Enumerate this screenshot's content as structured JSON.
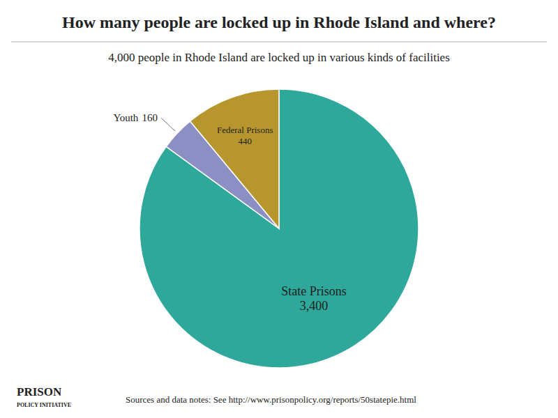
{
  "chart_data": {
    "type": "pie",
    "title": "How many people are locked up in Rhode Island and where?",
    "subtitle": "4,000 people in Rhode Island are locked up in various kinds of facilities",
    "categories": [
      "State Prisons",
      "Youth",
      "Federal Prisons"
    ],
    "values": [
      3400,
      160,
      440
    ],
    "value_labels": [
      "3,400",
      "160",
      "440"
    ],
    "colors": [
      "#2da89a",
      "#8b8fc4",
      "#b8962e"
    ],
    "data_labels": true,
    "annotations": [
      "PRISON",
      "POLICY INITIATIVE",
      "Sources and data notes: See http://www.prisonpolicy.org/reports/50statepie.html"
    ]
  }
}
